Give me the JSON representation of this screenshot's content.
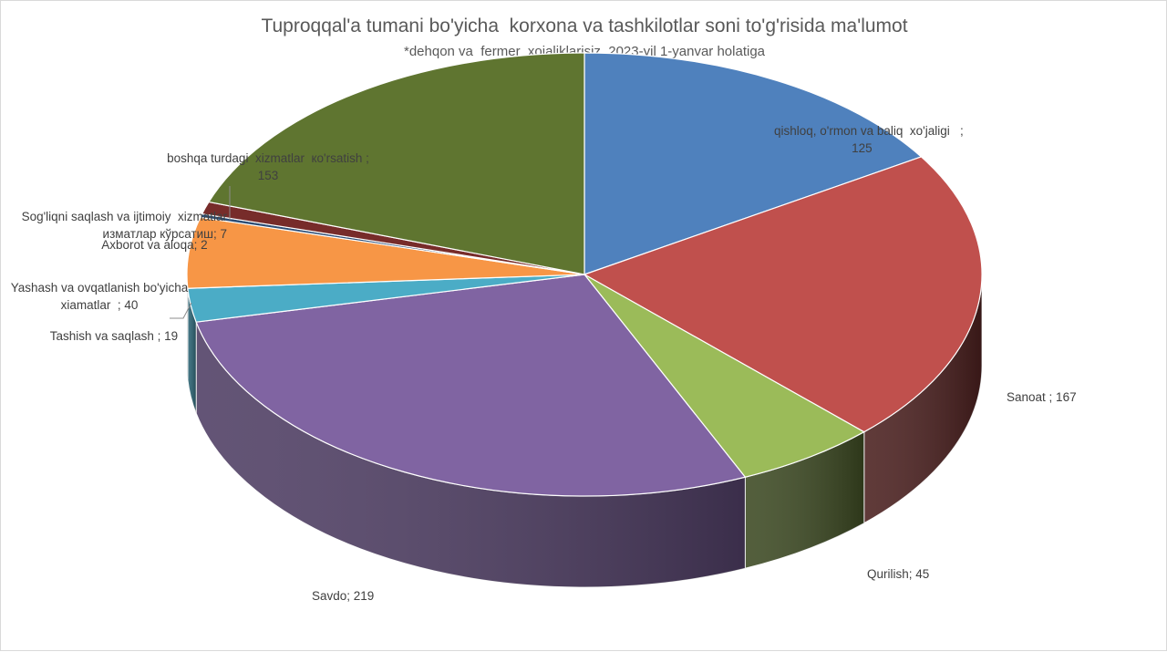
{
  "chart_data": {
    "type": "pie",
    "title": "Tuproqqal'a tumani bo'yicha  korxona va tashkilotlar soni to'g'risida ma'lumot",
    "subtitle": "*dehqon va  fermer  xojaliklarisiz, 2023-yil 1-yanvar holatiga",
    "three_d": true,
    "slices": [
      {
        "key": "qishloq",
        "label": "qishloq, o'rmon va baliq  xo'jaligi   ;",
        "value": 125,
        "value_text": "125",
        "color": "#4F81BD",
        "side_color": "#2D4A6F"
      },
      {
        "key": "sanoat",
        "label": "Sanoat ; 167",
        "value": 167,
        "value_text": "",
        "color": "#C0504D",
        "side_color": "#4A1F1E"
      },
      {
        "key": "qurilish",
        "label": "Qurilish; 45",
        "value": 45,
        "value_text": "",
        "color": "#9BBB59",
        "side_color": "#3C4922"
      },
      {
        "key": "savdo",
        "label": "Savdo; 219",
        "value": 219,
        "value_text": "",
        "color": "#8064A2",
        "side_color": "#4E3D63"
      },
      {
        "key": "tashish",
        "label": "Tashish va saqlash ; 19",
        "value": 19,
        "value_text": "",
        "color": "#4BACC6",
        "side_color": "#2A6373"
      },
      {
        "key": "yashash",
        "label": "Yashash va ovqatlanish bo'yicha",
        "value": 40,
        "value_text": "xiamatlar  ; 40",
        "color": "#F79646",
        "side_color": "#8E5426"
      },
      {
        "key": "axborot",
        "label": "Axborot va aloqa; 2",
        "value": 2,
        "value_text": "",
        "color": "#2C4D75",
        "side_color": "#1A2E46"
      },
      {
        "key": "sogliqni",
        "label": "Sog'liqni saqlash va ijtimoiy  xizmatlar",
        "value": 7,
        "value_text": "изматлар кўрсатиш; 7",
        "color": "#772C2A",
        "side_color": "#3F1716"
      },
      {
        "key": "boshqa",
        "label": "boshqa turdagi  xizmatlar  ко'rsatish ;",
        "value": 153,
        "value_text": "153",
        "color": "#5F7530",
        "side_color": "#33401A"
      }
    ]
  }
}
